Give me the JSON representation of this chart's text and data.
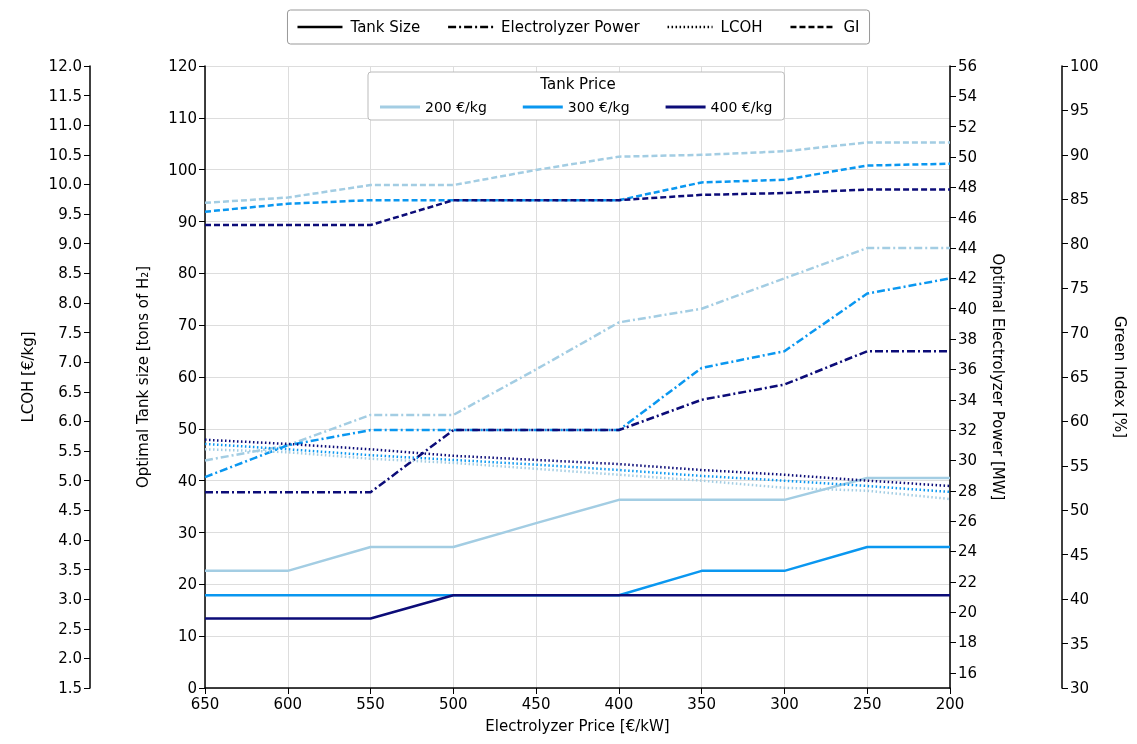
{
  "chart_data": [
    {
      "type": "line",
      "xlabel": "Electrolyzer Price [€/kW]",
      "ylabel": "Optimal Tank size [tons of H₂]",
      "y2label": "Optimal Electrolyzer Power [MW]",
      "y3label": "LCOH [€/kg]",
      "legend_title": "Tank Price",
      "legend": "top",
      "grid": true,
      "marker": "none",
      "annotations": [
        "Tank Size",
        "Electrolyzer Power",
        "LCOH",
        "GI"
      ],
      "x": [
        650,
        600,
        550,
        500,
        450,
        400,
        350,
        300,
        250,
        200
      ],
      "xlim": [
        650,
        200
      ],
      "xticks": [
        650,
        600,
        550,
        500,
        450,
        400,
        350,
        300,
        250,
        200
      ],
      "ylim": [
        0,
        120
      ],
      "yticks": [
        0,
        10,
        20,
        30,
        40,
        50,
        60,
        70,
        80,
        90,
        100,
        110,
        120
      ],
      "y2lim": [
        15,
        56
      ],
      "y2ticks": [
        16,
        18,
        20,
        22,
        24,
        26,
        28,
        30,
        32,
        34,
        36,
        38,
        40,
        42,
        44,
        46,
        48,
        50,
        52,
        54,
        56
      ],
      "y3lim": [
        1.5,
        12
      ],
      "y3ticks": [
        1.5,
        {
          "value": 2,
          "label": "2.0"
        },
        2.5,
        {
          "value": 3,
          "label": "3.0"
        },
        3.5,
        {
          "value": 4,
          "label": "4.0"
        },
        4.5,
        {
          "value": 5,
          "label": "5.0"
        },
        5.5,
        {
          "value": 6,
          "label": "6.0"
        },
        6.5,
        {
          "value": 7,
          "label": "7.0"
        },
        7.5,
        {
          "value": 8,
          "label": "8.0"
        },
        8.5,
        {
          "value": 9,
          "label": "9.0"
        },
        9.5,
        {
          "value": 10,
          "label": "10.0"
        },
        10.5,
        {
          "value": 11,
          "label": "11.0"
        },
        11.5,
        {
          "value": 12,
          "label": "12.0"
        }
      ],
      "series": [
        {
          "name": "200 €/kg",
          "color": "#a3cde3",
          "line_style": "solid",
          "values": [
            22.6,
            22.6,
            27.2,
            27.2,
            31.8,
            36.3,
            36.3,
            36.3,
            40.5,
            40.5
          ]
        },
        {
          "name": "300 €/kg",
          "color": "#0a97f0",
          "line_style": "solid",
          "values": [
            17.9,
            17.9,
            17.9,
            17.9,
            17.9,
            17.9,
            22.6,
            22.6,
            27.2,
            27.2
          ]
        },
        {
          "name": "400 €/kg",
          "color": "#0c0c78",
          "line_style": "solid",
          "values": [
            13.4,
            13.4,
            13.4,
            17.9,
            17.9,
            17.9,
            17.9,
            17.9,
            17.9,
            17.9
          ]
        },
        {
          "color": "#a3cde3",
          "axis": "y2",
          "line_style": "dashdot",
          "values": [
            30.0,
            31.0,
            33.0,
            33.0,
            36.0,
            39.1,
            40.0,
            42.0,
            44.0,
            44.0
          ]
        },
        {
          "color": "#0a97f0",
          "axis": "y2",
          "line_style": "dashdot",
          "values": [
            28.9,
            31.0,
            32.0,
            32.0,
            32.0,
            32.0,
            36.1,
            37.2,
            41.0,
            42.0
          ]
        },
        {
          "color": "#0c0c78",
          "axis": "y2",
          "line_style": "dashdot",
          "values": [
            27.9,
            27.9,
            27.9,
            32.0,
            32.0,
            32.0,
            34.0,
            35.0,
            37.2,
            37.2
          ]
        },
        {
          "color": "#a3cde3",
          "axis": "y3",
          "line_style": "dotted",
          "values": [
            5.53,
            5.48,
            5.37,
            5.3,
            5.2,
            5.1,
            5.0,
            4.88,
            4.83,
            4.69
          ]
        },
        {
          "color": "#0a97f0",
          "axis": "y3",
          "line_style": "dotted",
          "values": [
            5.62,
            5.53,
            5.43,
            5.35,
            5.27,
            5.18,
            5.08,
            5.0,
            4.91,
            4.81
          ]
        },
        {
          "color": "#0c0c78",
          "axis": "y3",
          "line_style": "dotted",
          "values": [
            5.69,
            5.62,
            5.53,
            5.42,
            5.35,
            5.28,
            5.18,
            5.1,
            5.0,
            4.91
          ]
        }
      ]
    },
    {
      "type": "line",
      "ylabel": "Green Index [%]",
      "marker": "none",
      "line_style": "dashed",
      "tick_labels": "y",
      "x": [
        650,
        600,
        550,
        500,
        450,
        400,
        350,
        300,
        250,
        200
      ],
      "xlim": [
        650,
        200
      ],
      "ylim": [
        30,
        100
      ],
      "yticks": [
        30,
        35,
        40,
        45,
        50,
        55,
        60,
        65,
        70,
        75,
        80,
        85,
        90,
        95,
        100
      ],
      "series": [
        {
          "color": "#a3cde3",
          "values": [
            84.6,
            85.2,
            86.6,
            86.6,
            88.3,
            89.8,
            90.0,
            90.4,
            91.4,
            91.4
          ]
        },
        {
          "color": "#0a97f0",
          "values": [
            83.6,
            84.5,
            84.9,
            84.9,
            84.9,
            84.9,
            86.9,
            87.2,
            88.8,
            89.0
          ]
        },
        {
          "color": "#0c0c78",
          "values": [
            82.1,
            82.1,
            82.1,
            84.9,
            84.9,
            84.9,
            85.5,
            85.7,
            86.1,
            86.1
          ]
        }
      ]
    }
  ]
}
